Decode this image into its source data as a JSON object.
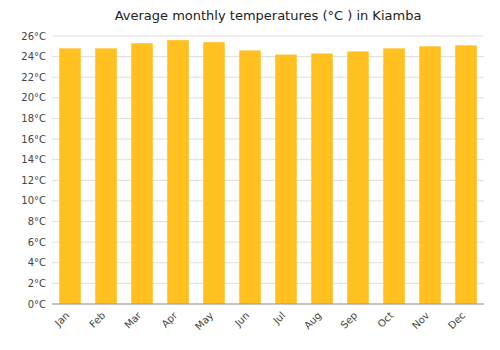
{
  "chart_data": {
    "type": "bar",
    "title": "Average monthly temperatures (°C ) in Kiamba",
    "categories": [
      "Jan",
      "Feb",
      "Mar",
      "Apr",
      "May",
      "Jun",
      "Jul",
      "Aug",
      "Sep",
      "Oct",
      "Nov",
      "Dec"
    ],
    "values": [
      24.8,
      24.8,
      25.3,
      25.6,
      25.4,
      24.6,
      24.2,
      24.3,
      24.5,
      24.8,
      25.0,
      25.1
    ],
    "color": "#FFC020",
    "ylim": [
      0,
      26
    ],
    "yticks": [
      {
        "value": 0,
        "label": "0°C"
      },
      {
        "value": 2,
        "label": "2°C"
      },
      {
        "value": 4,
        "label": "4°C"
      },
      {
        "value": 6,
        "label": "6°C"
      },
      {
        "value": 8,
        "label": "8°C"
      },
      {
        "value": 10,
        "label": "10°C"
      },
      {
        "value": 12,
        "label": "12°C"
      },
      {
        "value": 14,
        "label": "14°C"
      },
      {
        "value": 16,
        "label": "16°C"
      },
      {
        "value": 18,
        "label": "18°C"
      },
      {
        "value": 20,
        "label": "20°C"
      },
      {
        "value": 22,
        "label": "22°C"
      },
      {
        "value": 24,
        "label": "24°C"
      },
      {
        "value": 26,
        "label": "26°C"
      }
    ],
    "grid": true
  }
}
